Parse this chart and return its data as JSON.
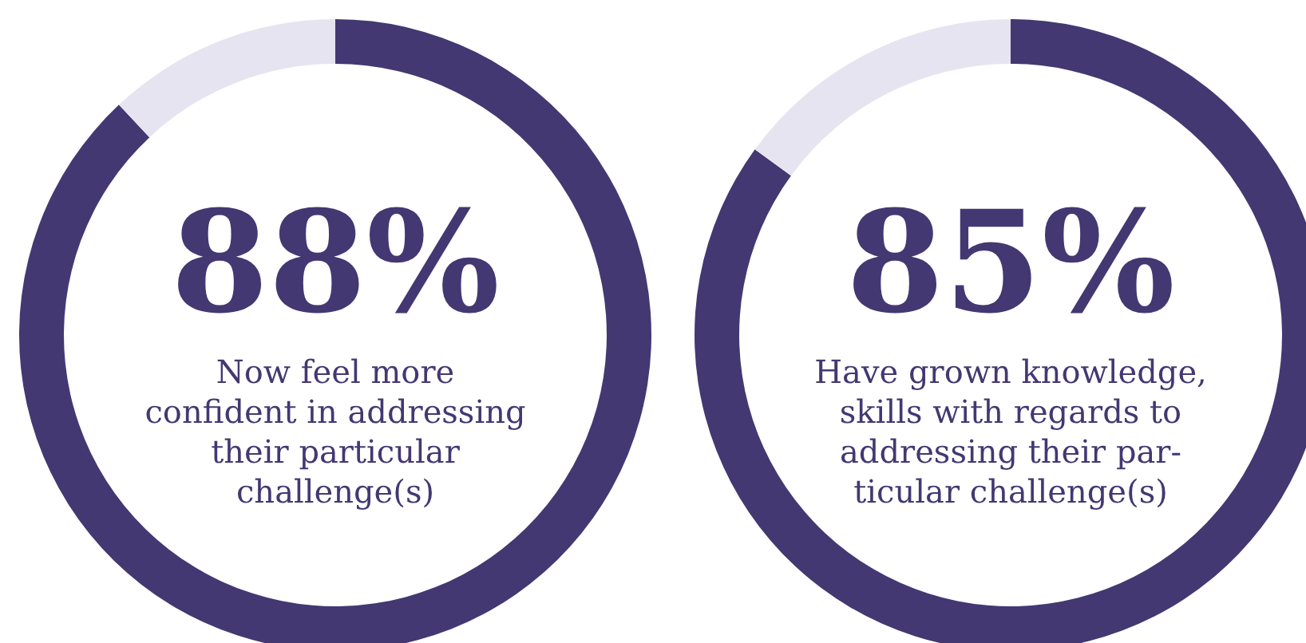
{
  "chart_data": [
    {
      "type": "donut",
      "categories": [
        null,
        null
      ],
      "values": [
        88,
        12
      ],
      "colors": [
        "#433872",
        "#e7e4f1"
      ],
      "value_labels": [
        "88%",
        null
      ],
      "annotations": [
        "Now feel more\nconfident in addressing\ntheir particular\nchallenge(s)"
      ]
    },
    {
      "type": "donut",
      "categories": [
        null,
        null
      ],
      "values": [
        85,
        15
      ],
      "colors": [
        "#433872",
        "#e7e4f1"
      ],
      "value_labels": [
        "85%",
        null
      ],
      "annotations": [
        "Have grown knowledge,\nskills with regards to\naddressing their par-\nticular challenge(s)"
      ]
    }
  ]
}
